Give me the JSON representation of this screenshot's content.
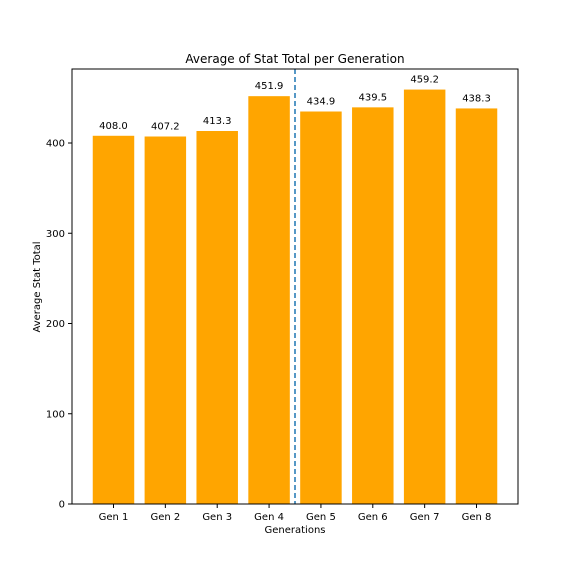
{
  "chart_data": {
    "type": "bar",
    "title": "Average of Stat Total per Generation",
    "xlabel": "Generations",
    "ylabel": "Average Stat Total",
    "categories": [
      "Gen 1",
      "Gen 2",
      "Gen 3",
      "Gen 4",
      "Gen 5",
      "Gen 6",
      "Gen 7",
      "Gen 8"
    ],
    "values": [
      408.0,
      407.2,
      413.3,
      451.9,
      434.9,
      439.5,
      459.2,
      438.3
    ],
    "data_labels": [
      "408.0",
      "407.2",
      "413.3",
      "451.9",
      "434.9",
      "439.5",
      "459.2",
      "438.3"
    ],
    "ylim": [
      0,
      482
    ],
    "yticks": [
      0,
      100,
      200,
      300,
      400
    ],
    "grid": false,
    "legend": "none",
    "reference_line": {
      "position_between": [
        "Gen 4",
        "Gen 5"
      ],
      "style": "dashed",
      "color": "#1f77b4"
    },
    "colors": {
      "bar": "#ffa500",
      "axis": "#000000"
    }
  }
}
